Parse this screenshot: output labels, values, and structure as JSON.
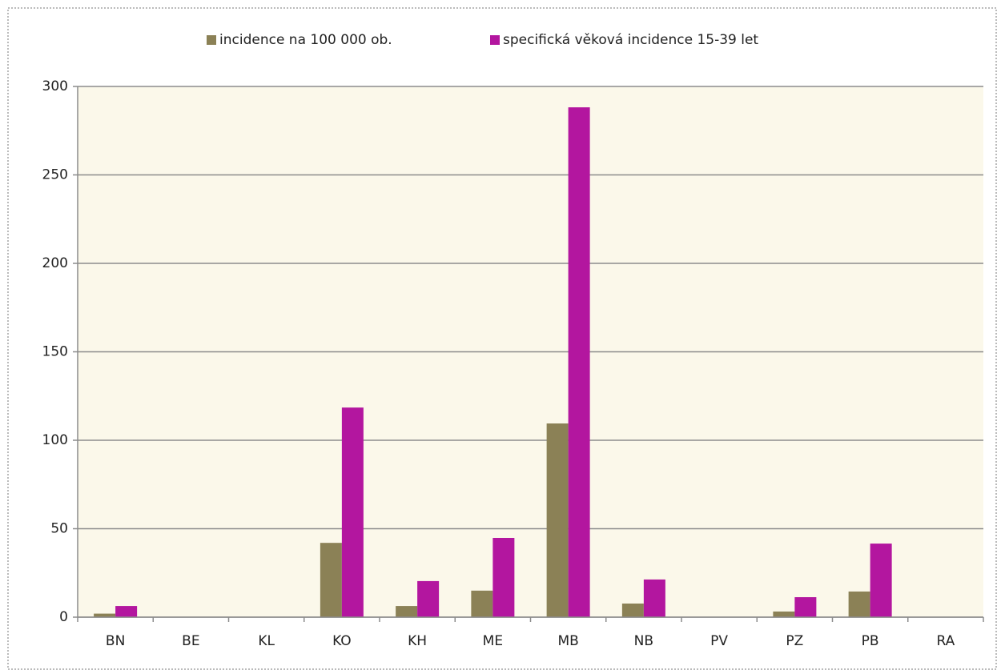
{
  "chart_data": {
    "type": "bar",
    "categories": [
      "BN",
      "BE",
      "KL",
      "KO",
      "KH",
      "ME",
      "MB",
      "NB",
      "PV",
      "PZ",
      "PB",
      "RA"
    ],
    "series": [
      {
        "name": "incidence na 100 000 ob.",
        "color": "#8b8156",
        "values": [
          2,
          0,
          0,
          42,
          6.3,
          15,
          109.5,
          7.7,
          0,
          3.2,
          14.5,
          0
        ]
      },
      {
        "name": "specifická věková incidence 15-39 let",
        "color": "#b3169f",
        "values": [
          6.3,
          0,
          0,
          118.5,
          20.4,
          44.8,
          288.2,
          21.3,
          0,
          11.3,
          41.6,
          0
        ]
      }
    ],
    "ylim": [
      0,
      300
    ],
    "yticks": [
      0,
      50,
      100,
      150,
      200,
      250,
      300
    ],
    "grid": true,
    "legend": "top"
  }
}
